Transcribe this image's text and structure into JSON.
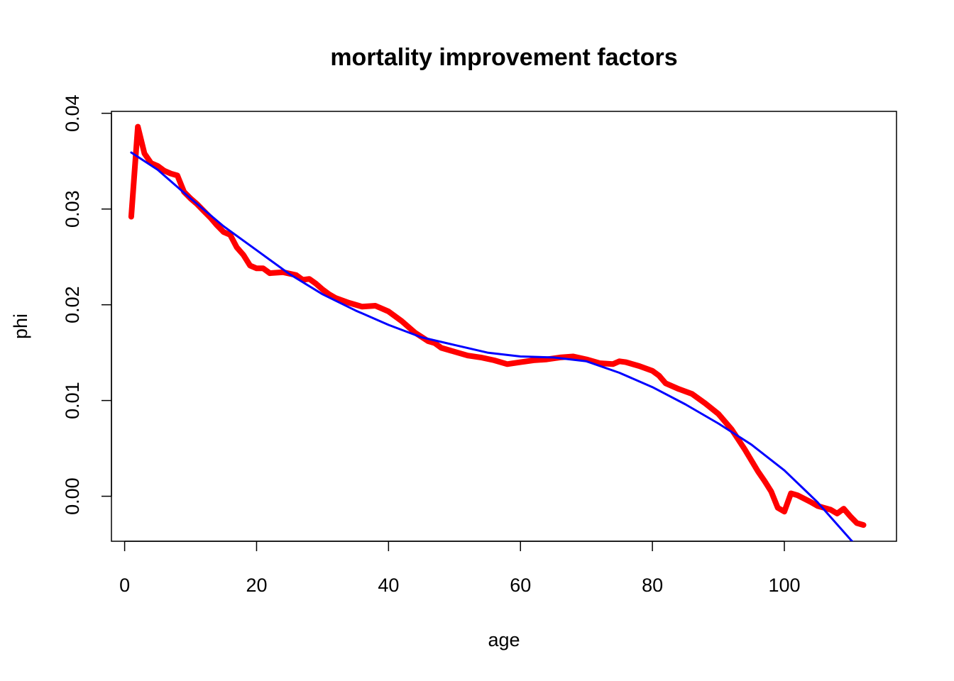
{
  "chart_data": {
    "type": "line",
    "title": "mortality improvement factors",
    "xlabel": "age",
    "ylabel": "phi",
    "xlim": [
      -2,
      117
    ],
    "ylim": [
      -0.0047,
      0.0402
    ],
    "x_ticks": [
      0,
      20,
      40,
      60,
      80,
      100
    ],
    "x_tick_labels": [
      "0",
      "20",
      "40",
      "60",
      "80",
      "100"
    ],
    "y_ticks": [
      0.0,
      0.01,
      0.02,
      0.03,
      0.04
    ],
    "y_tick_labels": [
      "0.00",
      "0.01",
      "0.02",
      "0.03",
      "0.04"
    ],
    "grid": false,
    "legend": "none",
    "series": [
      {
        "color": "#ff0000",
        "style": "thick",
        "points": [
          [
            1,
            0.0292
          ],
          [
            2,
            0.0386
          ],
          [
            3,
            0.0358
          ],
          [
            4,
            0.0348
          ],
          [
            5,
            0.0345
          ],
          [
            6,
            0.034
          ],
          [
            7,
            0.0337
          ],
          [
            8,
            0.0335
          ],
          [
            9,
            0.0318
          ],
          [
            10,
            0.0311
          ],
          [
            11,
            0.0305
          ],
          [
            12,
            0.0298
          ],
          [
            13,
            0.0291
          ],
          [
            14,
            0.0283
          ],
          [
            15,
            0.0276
          ],
          [
            16,
            0.0273
          ],
          [
            17,
            0.026
          ],
          [
            18,
            0.0252
          ],
          [
            19,
            0.0241
          ],
          [
            20,
            0.0238
          ],
          [
            21,
            0.0238
          ],
          [
            22,
            0.0233
          ],
          [
            24,
            0.0234
          ],
          [
            26,
            0.0231
          ],
          [
            27,
            0.0226
          ],
          [
            28,
            0.0227
          ],
          [
            29,
            0.0222
          ],
          [
            30,
            0.0216
          ],
          [
            31,
            0.0211
          ],
          [
            32,
            0.0207
          ],
          [
            34,
            0.0202
          ],
          [
            36,
            0.0198
          ],
          [
            38,
            0.0199
          ],
          [
            40,
            0.0193
          ],
          [
            42,
            0.0183
          ],
          [
            44,
            0.0171
          ],
          [
            46,
            0.0162
          ],
          [
            47,
            0.016
          ],
          [
            48,
            0.0155
          ],
          [
            50,
            0.0151
          ],
          [
            52,
            0.0147
          ],
          [
            54,
            0.0145
          ],
          [
            56,
            0.0142
          ],
          [
            58,
            0.0138
          ],
          [
            60,
            0.014
          ],
          [
            62,
            0.0142
          ],
          [
            64,
            0.0143
          ],
          [
            66,
            0.0145
          ],
          [
            68,
            0.0146
          ],
          [
            70,
            0.0143
          ],
          [
            72,
            0.0139
          ],
          [
            74,
            0.0138
          ],
          [
            75,
            0.0141
          ],
          [
            76,
            0.014
          ],
          [
            78,
            0.0136
          ],
          [
            80,
            0.0131
          ],
          [
            81,
            0.0126
          ],
          [
            82,
            0.0118
          ],
          [
            84,
            0.0112
          ],
          [
            86,
            0.0107
          ],
          [
            88,
            0.0097
          ],
          [
            90,
            0.0086
          ],
          [
            92,
            0.007
          ],
          [
            94,
            0.0049
          ],
          [
            96,
            0.0026
          ],
          [
            97,
            0.0016
          ],
          [
            98,
            0.0005
          ],
          [
            99,
            -0.0012
          ],
          [
            100,
            -0.0016
          ],
          [
            101,
            0.0003
          ],
          [
            102,
            0.0001
          ],
          [
            104,
            -0.0006
          ],
          [
            105,
            -0.001
          ],
          [
            106,
            -0.0012
          ],
          [
            107,
            -0.0014
          ],
          [
            108,
            -0.0018
          ],
          [
            109,
            -0.0013
          ],
          [
            110,
            -0.0021
          ],
          [
            111,
            -0.0028
          ],
          [
            112,
            -0.003
          ]
        ]
      },
      {
        "color": "#0000ff",
        "style": "thin",
        "points": [
          [
            1,
            0.0359
          ],
          [
            5,
            0.0341
          ],
          [
            10,
            0.0311
          ],
          [
            15,
            0.0282
          ],
          [
            20,
            0.0257
          ],
          [
            25,
            0.0232
          ],
          [
            30,
            0.0211
          ],
          [
            35,
            0.0194
          ],
          [
            40,
            0.0179
          ],
          [
            45,
            0.0166
          ],
          [
            50,
            0.0158
          ],
          [
            55,
            0.015
          ],
          [
            60,
            0.0146
          ],
          [
            65,
            0.0145
          ],
          [
            70,
            0.0141
          ],
          [
            75,
            0.0129
          ],
          [
            80,
            0.0114
          ],
          [
            85,
            0.0096
          ],
          [
            90,
            0.0076
          ],
          [
            95,
            0.0054
          ],
          [
            100,
            0.0027
          ],
          [
            105,
            -0.0006
          ],
          [
            110,
            -0.0045
          ],
          [
            111,
            -0.0052
          ]
        ]
      }
    ]
  }
}
